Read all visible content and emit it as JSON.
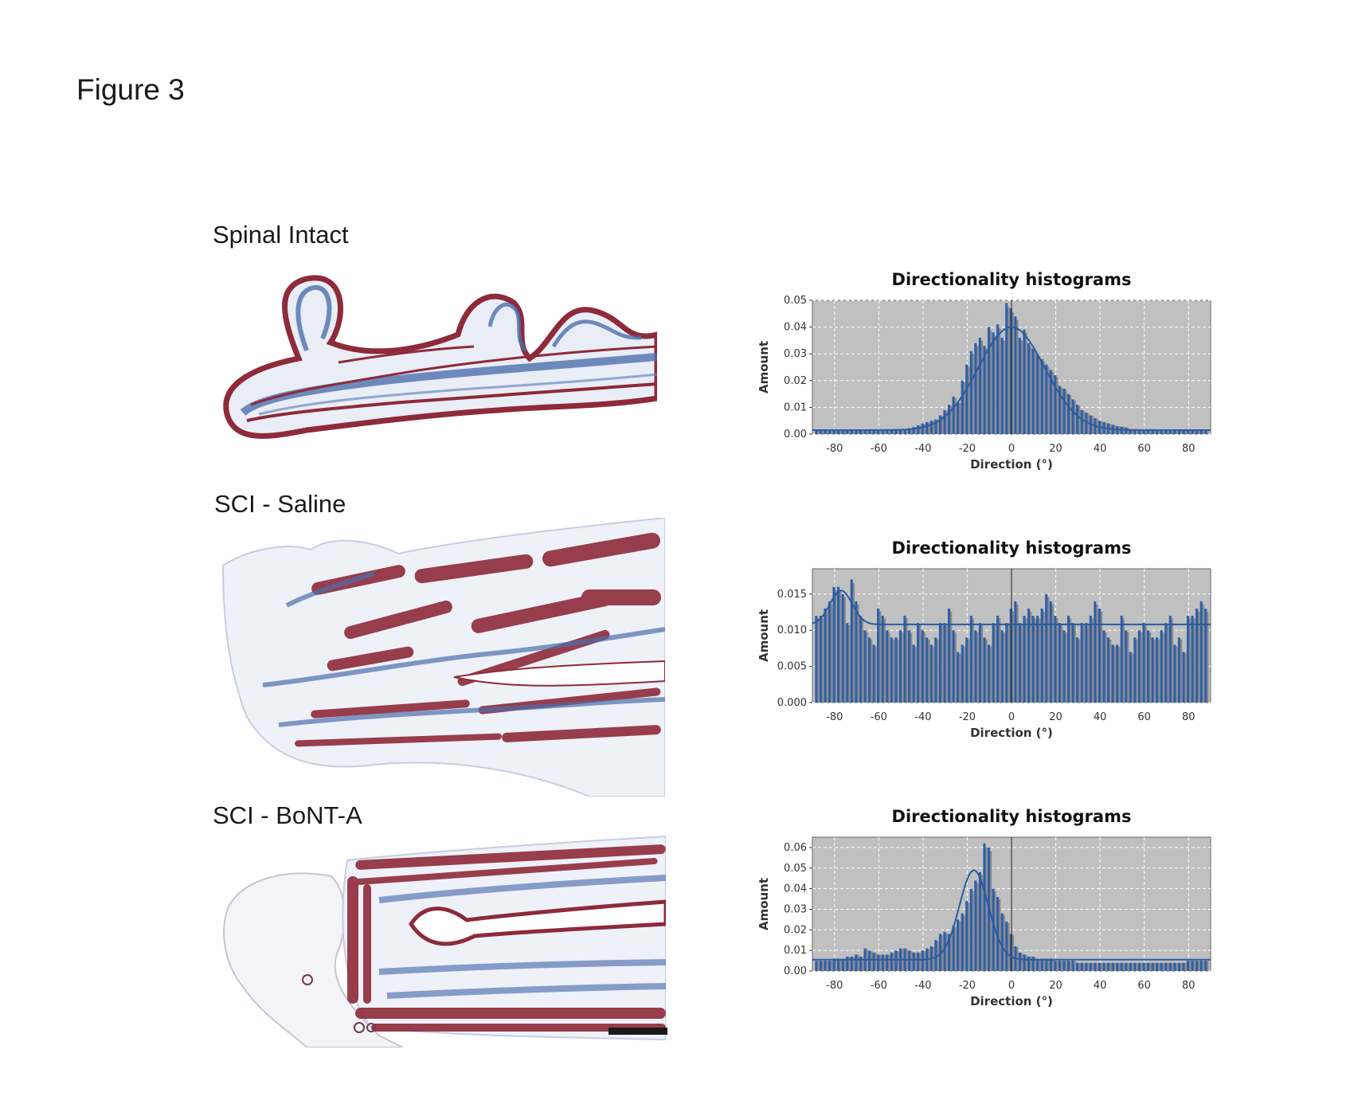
{
  "figure": {
    "title": "Figure 3"
  },
  "panels": [
    {
      "label": "Spinal Intact"
    },
    {
      "label": "SCI - Saline"
    },
    {
      "label": "SCI - BoNT-A"
    }
  ],
  "colors": {
    "plot_bg": "#c0c0c0",
    "bar": "#2e5fa8",
    "bar_shadow": "#8a8a8a",
    "fit_line": "#2a5aa0",
    "muscle": "#8e2a3a",
    "collagen": "#4d6fae"
  },
  "chart_data": [
    {
      "type": "bar",
      "title": "Directionality histograms",
      "xlabel": "Direction (°)",
      "ylabel": "Amount",
      "xlim": [
        -90,
        90
      ],
      "ylim": [
        0,
        0.05
      ],
      "xticks": [
        "-80",
        "-60",
        "-40",
        "-20",
        "0",
        "20",
        "40",
        "60",
        "80"
      ],
      "yticks": [
        "0.00",
        "0.01",
        "0.02",
        "0.03",
        "0.04",
        "0.05"
      ],
      "grid": true,
      "fit": {
        "type": "gaussian",
        "center": 0,
        "sigma": 15,
        "peak": 0.04,
        "baseline": 0.0015
      },
      "x": [
        -88,
        -86,
        -84,
        -82,
        -80,
        -78,
        -76,
        -74,
        -72,
        -70,
        -68,
        -66,
        -64,
        -62,
        -60,
        -58,
        -56,
        -54,
        -52,
        -50,
        -48,
        -46,
        -44,
        -42,
        -40,
        -38,
        -36,
        -34,
        -32,
        -30,
        -28,
        -26,
        -24,
        -22,
        -20,
        -18,
        -16,
        -14,
        -12,
        -10,
        -8,
        -6,
        -4,
        -2,
        0,
        2,
        4,
        6,
        8,
        10,
        12,
        14,
        16,
        18,
        20,
        22,
        24,
        26,
        28,
        30,
        32,
        34,
        36,
        38,
        40,
        42,
        44,
        46,
        48,
        50,
        52,
        54,
        56,
        58,
        60,
        62,
        64,
        66,
        68,
        70,
        72,
        74,
        76,
        78,
        80,
        82,
        84,
        86,
        88
      ],
      "values": [
        0.0015,
        0.0015,
        0.0015,
        0.0015,
        0.0015,
        0.0015,
        0.0015,
        0.0015,
        0.0015,
        0.0015,
        0.0015,
        0.0015,
        0.0015,
        0.0015,
        0.0015,
        0.0015,
        0.0015,
        0.0015,
        0.0015,
        0.0016,
        0.0018,
        0.0022,
        0.0027,
        0.0033,
        0.004,
        0.0045,
        0.005,
        0.0055,
        0.007,
        0.009,
        0.011,
        0.014,
        0.012,
        0.02,
        0.026,
        0.031,
        0.034,
        0.036,
        0.033,
        0.04,
        0.038,
        0.041,
        0.036,
        0.049,
        0.047,
        0.044,
        0.036,
        0.039,
        0.034,
        0.032,
        0.03,
        0.028,
        0.026,
        0.024,
        0.022,
        0.018,
        0.017,
        0.015,
        0.013,
        0.011,
        0.009,
        0.008,
        0.007,
        0.006,
        0.005,
        0.0045,
        0.004,
        0.0035,
        0.003,
        0.0028,
        0.0025,
        0.0015,
        0.0015,
        0.0015,
        0.0015,
        0.0015,
        0.0015,
        0.0015,
        0.0015,
        0.0015,
        0.0015,
        0.0015,
        0.0015,
        0.0015,
        0.0015,
        0.0015,
        0.0015,
        0.0015,
        0.0015
      ]
    },
    {
      "type": "bar",
      "title": "Directionality histograms",
      "xlabel": "Direction (°)",
      "ylabel": "Amount",
      "xlim": [
        -90,
        90
      ],
      "ylim": [
        0,
        0.0185
      ],
      "xticks": [
        "-80",
        "-60",
        "-40",
        "-20",
        "0",
        "20",
        "40",
        "60",
        "80"
      ],
      "yticks": [
        "0.000",
        "0.005",
        "0.010",
        "0.015"
      ],
      "grid": true,
      "fit": {
        "type": "gaussian",
        "center": -77,
        "sigma": 5,
        "peak": 0.0155,
        "baseline": 0.0108
      },
      "x": [
        -88,
        -86,
        -84,
        -82,
        -80,
        -78,
        -76,
        -74,
        -72,
        -70,
        -68,
        -66,
        -64,
        -62,
        -60,
        -58,
        -56,
        -54,
        -52,
        -50,
        -48,
        -46,
        -44,
        -42,
        -40,
        -38,
        -36,
        -34,
        -32,
        -30,
        -28,
        -26,
        -24,
        -22,
        -20,
        -18,
        -16,
        -14,
        -12,
        -10,
        -8,
        -6,
        -4,
        -2,
        0,
        2,
        4,
        6,
        8,
        10,
        12,
        14,
        16,
        18,
        20,
        22,
        24,
        26,
        28,
        30,
        32,
        34,
        36,
        38,
        40,
        42,
        44,
        46,
        48,
        50,
        52,
        54,
        56,
        58,
        60,
        62,
        64,
        66,
        68,
        70,
        72,
        74,
        76,
        78,
        80,
        82,
        84,
        86,
        88
      ],
      "values": [
        0.012,
        0.012,
        0.013,
        0.014,
        0.016,
        0.016,
        0.015,
        0.011,
        0.017,
        0.014,
        0.012,
        0.01,
        0.009,
        0.008,
        0.013,
        0.012,
        0.01,
        0.009,
        0.009,
        0.01,
        0.012,
        0.01,
        0.008,
        0.011,
        0.01,
        0.009,
        0.008,
        0.009,
        0.011,
        0.011,
        0.013,
        0.01,
        0.007,
        0.008,
        0.009,
        0.012,
        0.01,
        0.011,
        0.009,
        0.008,
        0.011,
        0.012,
        0.01,
        0.011,
        0.013,
        0.014,
        0.011,
        0.012,
        0.013,
        0.012,
        0.012,
        0.013,
        0.015,
        0.014,
        0.012,
        0.011,
        0.01,
        0.012,
        0.011,
        0.009,
        0.011,
        0.011,
        0.012,
        0.014,
        0.013,
        0.01,
        0.009,
        0.008,
        0.008,
        0.012,
        0.01,
        0.007,
        0.009,
        0.01,
        0.011,
        0.01,
        0.009,
        0.009,
        0.01,
        0.011,
        0.012,
        0.008,
        0.009,
        0.007,
        0.012,
        0.012,
        0.013,
        0.014,
        0.013
      ]
    },
    {
      "type": "bar",
      "title": "Directionality histograms",
      "xlabel": "Direction (°)",
      "ylabel": "Amount",
      "xlim": [
        -90,
        90
      ],
      "ylim": [
        0,
        0.065
      ],
      "xticks": [
        "-80",
        "-60",
        "-40",
        "-20",
        "0",
        "20",
        "40",
        "60",
        "80"
      ],
      "yticks": [
        "0.00",
        "0.01",
        "0.02",
        "0.03",
        "0.04",
        "0.05",
        "0.06"
      ],
      "grid": true,
      "fit": {
        "type": "gaussian",
        "center": -17,
        "sigma": 6.5,
        "peak": 0.049,
        "baseline": 0.0055
      },
      "x": [
        -88,
        -86,
        -84,
        -82,
        -80,
        -78,
        -76,
        -74,
        -72,
        -70,
        -68,
        -66,
        -64,
        -62,
        -60,
        -58,
        -56,
        -54,
        -52,
        -50,
        -48,
        -46,
        -44,
        -42,
        -40,
        -38,
        -36,
        -34,
        -32,
        -30,
        -28,
        -26,
        -24,
        -22,
        -20,
        -18,
        -16,
        -14,
        -12,
        -10,
        -8,
        -6,
        -4,
        -2,
        0,
        2,
        4,
        6,
        8,
        10,
        12,
        14,
        16,
        18,
        20,
        22,
        24,
        26,
        28,
        30,
        32,
        34,
        36,
        38,
        40,
        42,
        44,
        46,
        48,
        50,
        52,
        54,
        56,
        58,
        60,
        62,
        64,
        66,
        68,
        70,
        72,
        74,
        76,
        78,
        80,
        82,
        84,
        86,
        88
      ],
      "values": [
        0.005,
        0.005,
        0.005,
        0.005,
        0.006,
        0.006,
        0.006,
        0.007,
        0.007,
        0.008,
        0.007,
        0.011,
        0.01,
        0.009,
        0.008,
        0.008,
        0.008,
        0.009,
        0.01,
        0.011,
        0.011,
        0.01,
        0.009,
        0.009,
        0.01,
        0.011,
        0.012,
        0.015,
        0.018,
        0.019,
        0.018,
        0.022,
        0.025,
        0.028,
        0.034,
        0.04,
        0.044,
        0.048,
        0.062,
        0.06,
        0.04,
        0.036,
        0.028,
        0.024,
        0.018,
        0.012,
        0.009,
        0.008,
        0.007,
        0.007,
        0.006,
        0.006,
        0.006,
        0.006,
        0.005,
        0.005,
        0.005,
        0.005,
        0.005,
        0.004,
        0.004,
        0.004,
        0.004,
        0.004,
        0.004,
        0.004,
        0.004,
        0.004,
        0.004,
        0.004,
        0.004,
        0.004,
        0.004,
        0.004,
        0.004,
        0.004,
        0.004,
        0.004,
        0.004,
        0.004,
        0.004,
        0.004,
        0.004,
        0.004,
        0.005,
        0.005,
        0.005,
        0.005,
        0.005
      ]
    }
  ]
}
